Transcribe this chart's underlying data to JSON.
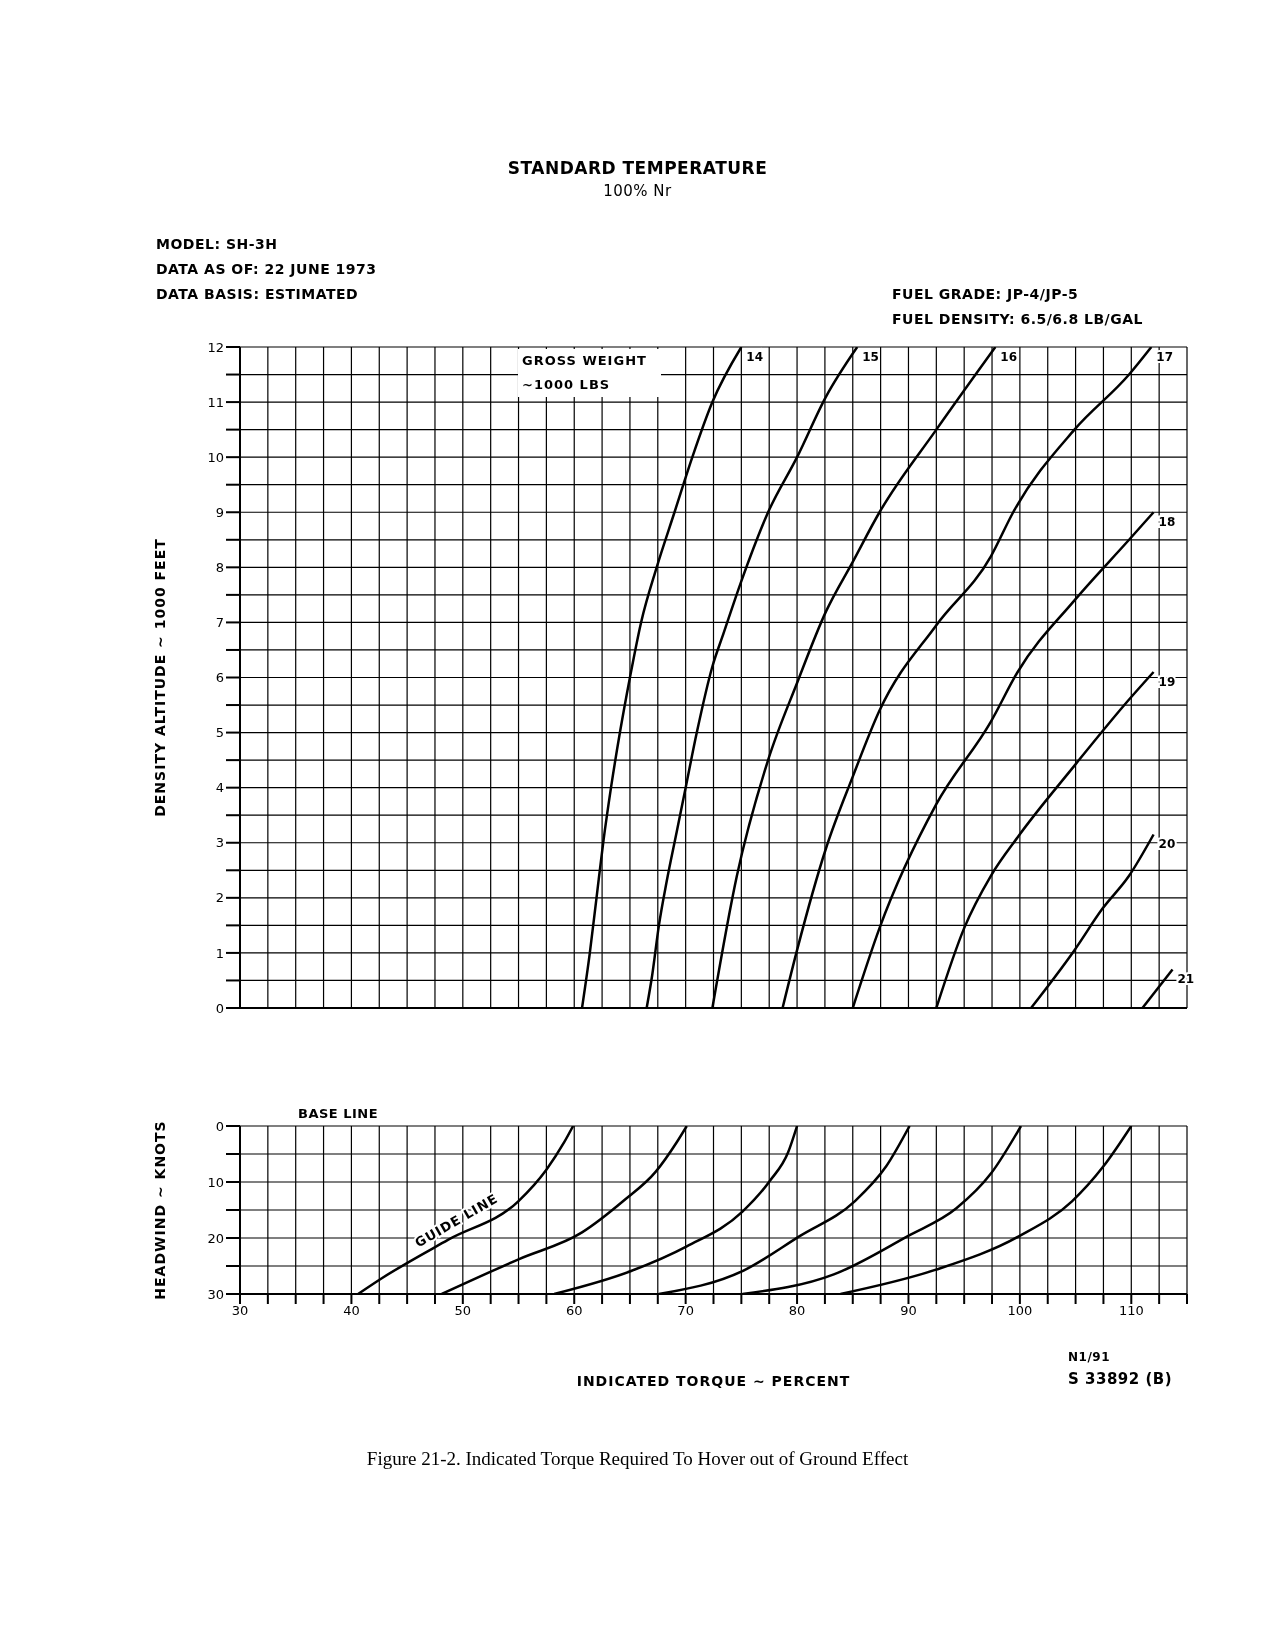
{
  "chart_data": [
    {
      "type": "line",
      "title": "STANDARD TEMPERATURE",
      "subtitle": "100% Nr",
      "ylabel": "DENSITY ALTITUDE ~ 1000 FEET",
      "legend_title": "GROSS WEIGHT ~1000 LBS",
      "annotations": [
        "MODEL: SH-3H",
        "DATA AS OF: 22 JUNE 1973",
        "DATA BASIS: ESTIMATED",
        "FUEL GRADE: JP-4/JP-5",
        "FUEL DENSITY: 6.5/6.8 LB/GAL"
      ],
      "xlim": [
        30,
        115
      ],
      "xticks": [
        30,
        32.5,
        35,
        37.5,
        40,
        42.5,
        45,
        47.5,
        50,
        52.5,
        55,
        57.5,
        60,
        62.5,
        65,
        67.5,
        70,
        72.5,
        75,
        77.5,
        80,
        82.5,
        85,
        87.5,
        90,
        92.5,
        95,
        97.5,
        100,
        102.5,
        105,
        107.5,
        110,
        112.5,
        115
      ],
      "ylim": [
        0,
        12
      ],
      "yticks": [
        0,
        {
          "value": 0.5,
          "label": null
        },
        1,
        {
          "value": 1.5,
          "label": null
        },
        2,
        {
          "value": 2.5,
          "label": null
        },
        3,
        {
          "value": 3.5,
          "label": null
        },
        4,
        {
          "value": 4.5,
          "label": null
        },
        5,
        {
          "value": 5.5,
          "label": null
        },
        6,
        {
          "value": 6.5,
          "label": null
        },
        7,
        {
          "value": 7.5,
          "label": null
        },
        8,
        {
          "value": 8.5,
          "label": null
        },
        9,
        {
          "value": 9.5,
          "label": null
        },
        10,
        {
          "value": 10.5,
          "label": null
        },
        11,
        {
          "value": 11.5,
          "label": null
        },
        12
      ],
      "tick_labels": "y",
      "grid": true,
      "series": [
        {
          "name": "14",
          "color": "#000000",
          "x": [
            60.7,
            61.4,
            62.0,
            62.6,
            63.3,
            64.1,
            65.0,
            66.0,
            67.4,
            69.0,
            70.6,
            72.4,
            75.0
          ],
          "values": [
            0,
            1,
            2,
            3,
            4,
            5,
            6,
            7,
            8,
            9,
            10,
            11,
            12
          ]
        },
        {
          "name": "15",
          "color": "#000000",
          "x": [
            66.5,
            67.0,
            67.6,
            68.3,
            69.2,
            70.0,
            71.0,
            72.4,
            73.4,
            75.0,
            77.4,
            80.0,
            82.6,
            85.4
          ],
          "values": [
            0,
            0.6,
            1.5,
            2.3,
            3.2,
            4.0,
            5.0,
            6.2,
            6.8,
            7.75,
            9.0,
            10.0,
            11.1,
            12
          ]
        },
        {
          "name": "16",
          "color": "#000000",
          "x": [
            72.4,
            74.6,
            77.4,
            80.0,
            82.6,
            85.0,
            87.4,
            92.5,
            97.8
          ],
          "values": [
            0,
            2.4,
            4.5,
            5.9,
            7.2,
            8.1,
            9.0,
            10.5,
            12
          ]
        },
        {
          "name": "17",
          "color": "#000000",
          "x": [
            78.7,
            80.0,
            82.6,
            85.0,
            87.4,
            92.5,
            97.4,
            99.4,
            104.9,
            109.8,
            111.8
          ],
          "values": [
            0,
            1.05,
            2.9,
            4.2,
            5.4,
            6.95,
            8.2,
            9.0,
            10.5,
            11.5,
            12
          ]
        },
        {
          "name": "18",
          "color": "#000000",
          "x": [
            85.0,
            87.4,
            92.5,
            97.4,
            99.8,
            104.9,
            109.8,
            112.0
          ],
          "values": [
            0,
            1.45,
            3.7,
            5.2,
            6.1,
            7.4,
            8.5,
            9.0
          ]
        },
        {
          "name": "19",
          "color": "#000000",
          "x": [
            92.5,
            95.0,
            97.4,
            99.8,
            104.9,
            109.8,
            112.0
          ],
          "values": [
            0,
            1.45,
            2.4,
            3.1,
            4.4,
            5.6,
            6.1
          ]
        },
        {
          "name": "20",
          "color": "#000000",
          "x": [
            101.0,
            104.9,
            107.4,
            109.8,
            112.0
          ],
          "values": [
            0,
            1.05,
            1.8,
            2.4,
            3.15
          ]
        },
        {
          "name": "21",
          "color": "#000000",
          "x": [
            111.0,
            113.7
          ],
          "values": [
            0,
            0.7
          ]
        }
      ]
    },
    {
      "type": "line",
      "xlabel": "INDICATED TORQUE ~ PERCENT",
      "ylabel": "HEADWIND ~ KNOTS",
      "annotations": [
        "BASE LINE",
        {
          "text": "GUIDE LINE",
          "x": 48.7,
          "y": 20.3
        },
        "N1/91",
        "S 33892 (B)",
        "Figure 21-2.  Indicated Torque Required To Hover out of Ground Effect"
      ],
      "xlim": [
        30,
        115
      ],
      "xticks": [
        30,
        {
          "value": 32.5,
          "label": null
        },
        {
          "value": 35,
          "label": null
        },
        {
          "value": 37.5,
          "label": null
        },
        40,
        {
          "value": 42.5,
          "label": null
        },
        {
          "value": 45,
          "label": null
        },
        {
          "value": 47.5,
          "label": null
        },
        50,
        {
          "value": 52.5,
          "label": null
        },
        {
          "value": 55,
          "label": null
        },
        {
          "value": 57.5,
          "label": null
        },
        60,
        {
          "value": 62.5,
          "label": null
        },
        {
          "value": 65,
          "label": null
        },
        {
          "value": 67.5,
          "label": null
        },
        70,
        {
          "value": 72.5,
          "label": null
        },
        {
          "value": 75,
          "label": null
        },
        {
          "value": 77.5,
          "label": null
        },
        80,
        {
          "value": 82.5,
          "label": null
        },
        {
          "value": 85,
          "label": null
        },
        {
          "value": 87.5,
          "label": null
        },
        90,
        {
          "value": 92.5,
          "label": null
        },
        {
          "value": 95,
          "label": null
        },
        {
          "value": 97.5,
          "label": null
        },
        100,
        {
          "value": 102.5,
          "label": null
        },
        {
          "value": 105,
          "label": null
        },
        {
          "value": 107.5,
          "label": null
        },
        110,
        {
          "value": 112.5,
          "label": null
        },
        {
          "value": 115,
          "label": null
        }
      ],
      "ylim": [
        30,
        0
      ],
      "yticks": [
        0,
        {
          "value": 5,
          "label": null
        },
        10,
        {
          "value": 15,
          "label": null
        },
        20,
        {
          "value": 25,
          "label": null
        },
        30
      ],
      "grid": true,
      "series": [
        {
          "color": "#000000",
          "x": [
            40.6,
            42.8,
            48.7,
            55.0,
            57.5,
            59.1,
            59.9
          ],
          "values": [
            30,
            27.1,
            20.3,
            13.4,
            7.8,
            2.9,
            0
          ]
        },
        {
          "color": "#000000",
          "x": [
            48.1,
            55.0,
            60.7,
            64.4,
            67.3,
            69.2,
            70.1
          ],
          "values": [
            30,
            23.8,
            19,
            13.4,
            8.2,
            2.9,
            0
          ]
        },
        {
          "color": "#000000",
          "x": [
            58.2,
            65.1,
            70.1,
            75.1,
            77.6,
            79.2,
            80.0
          ],
          "values": [
            30,
            25.9,
            21.5,
            15.3,
            9.7,
            4.7,
            0
          ]
        },
        {
          "color": "#000000",
          "x": [
            67.6,
            75.1,
            80.2,
            85.2,
            88.0,
            90.1
          ],
          "values": [
            30,
            25.9,
            19.7,
            13.4,
            7.2,
            0
          ]
        },
        {
          "color": "#000000",
          "x": [
            75.1,
            83.3,
            89.9,
            94.3,
            97.4,
            100.1
          ],
          "values": [
            30,
            26.5,
            19.7,
            14.7,
            8.5,
            0
          ]
        },
        {
          "color": "#000000",
          "x": [
            83.9,
            92.4,
            99.9,
            104.7,
            107.5,
            110.0
          ],
          "values": [
            30,
            25.7,
            19.7,
            13.4,
            7.2,
            0
          ]
        }
      ]
    }
  ]
}
